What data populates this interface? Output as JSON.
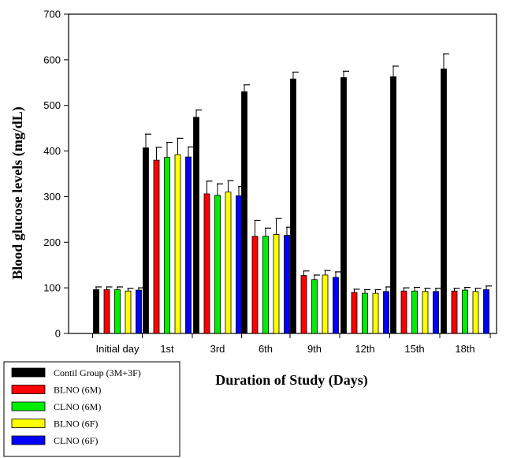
{
  "chart_data": {
    "type": "bar",
    "title": "",
    "xlabel": "Duration of Study (Days)",
    "ylabel": "Blood glucose levels (mg/dL)",
    "ylim": [
      0,
      700
    ],
    "yticks": [
      0,
      100,
      200,
      300,
      400,
      500,
      600,
      700
    ],
    "grid": false,
    "legend_position": "bottom-left",
    "categories": [
      "Initial day",
      "1st",
      "3rd",
      "6th",
      "9th",
      "12th",
      "15th",
      "18th"
    ],
    "series": [
      {
        "name": "Contil Group (3M+3F)",
        "color": "#000000",
        "values": [
          96,
          407,
          474,
          530,
          558,
          561,
          563,
          580
        ],
        "errors": [
          6,
          30,
          16,
          15,
          15,
          14,
          23,
          33
        ]
      },
      {
        "name": "BLNO (6M)",
        "color": "#ff0000",
        "values": [
          96,
          380,
          306,
          213,
          127,
          90,
          93,
          93
        ],
        "errors": [
          6,
          28,
          28,
          35,
          10,
          7,
          7,
          6
        ]
      },
      {
        "name": "CLNO (6M)",
        "color": "#00ee00",
        "values": [
          96,
          386,
          303,
          213,
          118,
          88,
          93,
          95
        ],
        "errors": [
          6,
          33,
          25,
          18,
          10,
          8,
          8,
          6
        ]
      },
      {
        "name": "BLNO (6F)",
        "color": "#ffff00",
        "values": [
          93,
          392,
          310,
          217,
          128,
          88,
          92,
          92
        ],
        "errors": [
          6,
          36,
          25,
          35,
          10,
          8,
          7,
          7
        ]
      },
      {
        "name": "CLNO (6F)",
        "color": "#0000ff",
        "values": [
          95,
          387,
          302,
          215,
          123,
          92,
          92,
          96
        ],
        "errors": [
          5,
          22,
          20,
          18,
          12,
          10,
          7,
          8
        ]
      }
    ]
  }
}
